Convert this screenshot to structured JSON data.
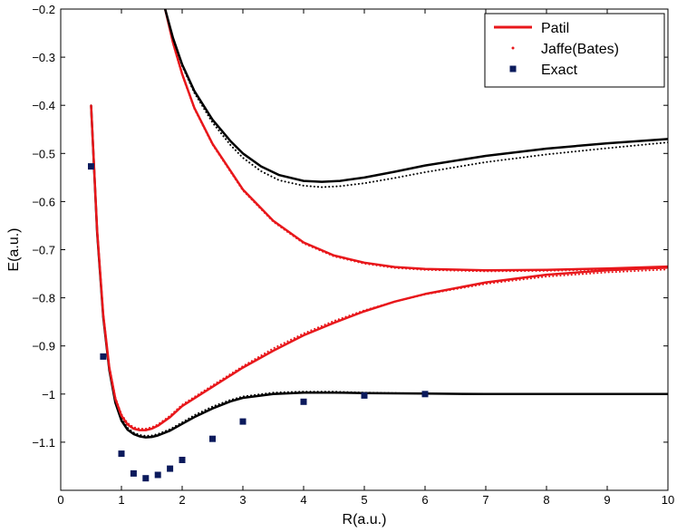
{
  "chart_data": {
    "type": "line",
    "xlabel": "R(a.u.)",
    "ylabel": "E(a.u.)",
    "xlim": [
      0,
      10
    ],
    "ylim": [
      -1.2,
      -0.2
    ],
    "xticks": [
      "0",
      "1",
      "2",
      "3",
      "4",
      "5",
      "6",
      "7",
      "8",
      "9",
      "10"
    ],
    "yticks": [
      "−1.1",
      "−1",
      "−0.9",
      "−0.8",
      "−0.7",
      "−0.6",
      "−0.5",
      "−0.4",
      "−0.3",
      "−0.2"
    ],
    "grid": false,
    "legend_position": "top-right",
    "legend": [
      {
        "label": "Patil",
        "style": "line",
        "color": "#e8171b"
      },
      {
        "label": "Jaffe(Bates)",
        "style": "dots",
        "color": "#e8171b"
      },
      {
        "label": "Exact",
        "style": "square",
        "color": "#0b1a5c"
      }
    ],
    "curves": [
      {
        "series": "Patil",
        "color": "#000000",
        "style": "solid",
        "x": [
          0.5,
          0.6,
          0.7,
          0.8,
          0.9,
          1.0,
          1.1,
          1.2,
          1.3,
          1.4,
          1.5,
          1.6,
          1.8,
          2.0,
          2.2,
          2.5,
          2.8,
          3.0,
          3.5,
          4.0,
          4.5,
          5.0,
          6.0,
          7.0,
          8.0,
          9.0,
          10.0
        ],
        "y": [
          -0.4,
          -0.665,
          -0.84,
          -0.95,
          -1.018,
          -1.055,
          -1.074,
          -1.083,
          -1.088,
          -1.09,
          -1.089,
          -1.086,
          -1.076,
          -1.062,
          -1.048,
          -1.03,
          -1.015,
          -1.008,
          -1.0,
          -0.997,
          -0.997,
          -0.998,
          -0.999,
          -1.0,
          -1.0,
          -1.0,
          -1.0
        ]
      },
      {
        "series": "Jaffe(Bates)",
        "color": "#000000",
        "style": "dotted",
        "x": [
          0.5,
          0.6,
          0.7,
          0.8,
          0.9,
          1.0,
          1.1,
          1.2,
          1.3,
          1.4,
          1.5,
          1.6,
          1.8,
          2.0,
          2.2,
          2.5,
          2.8,
          3.0,
          3.5,
          4.0,
          4.5,
          5.0,
          6.0,
          7.0,
          8.0,
          9.0,
          10.0
        ],
        "y": [
          -0.4,
          -0.66,
          -0.835,
          -0.945,
          -1.013,
          -1.05,
          -1.07,
          -1.08,
          -1.085,
          -1.087,
          -1.086,
          -1.083,
          -1.073,
          -1.059,
          -1.044,
          -1.026,
          -1.012,
          -1.005,
          -0.997,
          -0.995,
          -0.995,
          -0.997,
          -0.999,
          -1.0,
          -1.0,
          -1.0,
          -1.0
        ]
      },
      {
        "series": "Patil",
        "color": "#e8171b",
        "style": "solid",
        "x": [
          0.5,
          0.6,
          0.7,
          0.8,
          0.9,
          1.0,
          1.1,
          1.2,
          1.3,
          1.4,
          1.5,
          1.6,
          1.8,
          2.0,
          2.5,
          3.0,
          3.5,
          4.0,
          4.5,
          5.0,
          5.5,
          6.0,
          7.0,
          8.0,
          9.0,
          10.0
        ],
        "y": [
          -0.4,
          -0.66,
          -0.835,
          -0.945,
          -1.01,
          -1.045,
          -1.063,
          -1.072,
          -1.075,
          -1.075,
          -1.072,
          -1.066,
          -1.048,
          -1.025,
          -0.985,
          -0.945,
          -0.91,
          -0.878,
          -0.852,
          -0.828,
          -0.808,
          -0.792,
          -0.768,
          -0.752,
          -0.743,
          -0.737
        ]
      },
      {
        "series": "Jaffe(Bates)",
        "color": "#e8171b",
        "style": "dotted",
        "x": [
          0.5,
          0.6,
          0.7,
          0.8,
          0.9,
          1.0,
          1.1,
          1.2,
          1.3,
          1.4,
          1.5,
          1.6,
          1.8,
          2.0,
          2.5,
          3.0,
          3.5,
          4.0,
          4.5,
          5.0,
          5.5,
          6.0,
          7.0,
          8.0,
          9.0,
          10.0
        ],
        "y": [
          -0.4,
          -0.658,
          -0.832,
          -0.942,
          -1.007,
          -1.042,
          -1.06,
          -1.069,
          -1.072,
          -1.072,
          -1.069,
          -1.063,
          -1.045,
          -1.022,
          -0.982,
          -0.942,
          -0.905,
          -0.874,
          -0.848,
          -0.826,
          -0.808,
          -0.793,
          -0.771,
          -0.756,
          -0.747,
          -0.741
        ]
      },
      {
        "series": "Patil",
        "color": "#e8171b",
        "style": "solid",
        "x": [
          1.72,
          1.85,
          2.0,
          2.2,
          2.5,
          3.0,
          3.5,
          4.0,
          4.5,
          5.0,
          5.5,
          6.0,
          7.0,
          8.0,
          9.0,
          10.0
        ],
        "y": [
          -0.2,
          -0.27,
          -0.335,
          -0.405,
          -0.48,
          -0.575,
          -0.64,
          -0.685,
          -0.712,
          -0.727,
          -0.736,
          -0.74,
          -0.743,
          -0.742,
          -0.739,
          -0.735
        ]
      },
      {
        "series": "Jaffe(Bates)",
        "color": "#e8171b",
        "style": "dotted",
        "x": [
          1.72,
          1.85,
          2.0,
          2.2,
          2.5,
          3.0,
          3.5,
          4.0,
          4.5,
          5.0,
          5.5,
          6.0,
          7.0,
          8.0,
          9.0,
          10.0
        ],
        "y": [
          -0.2,
          -0.272,
          -0.337,
          -0.407,
          -0.482,
          -0.577,
          -0.642,
          -0.687,
          -0.714,
          -0.729,
          -0.738,
          -0.742,
          -0.745,
          -0.744,
          -0.741,
          -0.738
        ]
      },
      {
        "series": "Patil",
        "color": "#000000",
        "style": "solid",
        "x": [
          1.72,
          1.85,
          2.0,
          2.2,
          2.5,
          2.8,
          3.0,
          3.3,
          3.6,
          4.0,
          4.3,
          4.6,
          5.0,
          5.5,
          6.0,
          7.0,
          8.0,
          9.0,
          10.0
        ],
        "y": [
          -0.2,
          -0.26,
          -0.315,
          -0.37,
          -0.43,
          -0.475,
          -0.5,
          -0.527,
          -0.545,
          -0.557,
          -0.559,
          -0.557,
          -0.55,
          -0.538,
          -0.525,
          -0.505,
          -0.49,
          -0.479,
          -0.47
        ]
      },
      {
        "series": "Jaffe(Bates)",
        "color": "#000000",
        "style": "dotted",
        "x": [
          1.72,
          1.85,
          2.0,
          2.2,
          2.5,
          2.8,
          3.0,
          3.3,
          3.6,
          4.0,
          4.3,
          4.6,
          5.0,
          5.5,
          6.0,
          7.0,
          8.0,
          9.0,
          10.0
        ],
        "y": [
          -0.2,
          -0.262,
          -0.318,
          -0.374,
          -0.436,
          -0.483,
          -0.509,
          -0.537,
          -0.556,
          -0.567,
          -0.57,
          -0.568,
          -0.562,
          -0.551,
          -0.539,
          -0.518,
          -0.502,
          -0.489,
          -0.477
        ]
      }
    ],
    "exact_points": {
      "series": "Exact",
      "x": [
        0.5,
        0.7,
        1.0,
        1.2,
        1.4,
        1.6,
        1.8,
        2.0,
        2.5,
        3.0,
        4.0,
        5.0,
        6.0
      ],
      "y": [
        -0.527,
        -0.922,
        -1.124,
        -1.165,
        -1.175,
        -1.168,
        -1.155,
        -1.137,
        -1.093,
        -1.057,
        -1.016,
        -1.003,
        -1.0
      ]
    }
  }
}
